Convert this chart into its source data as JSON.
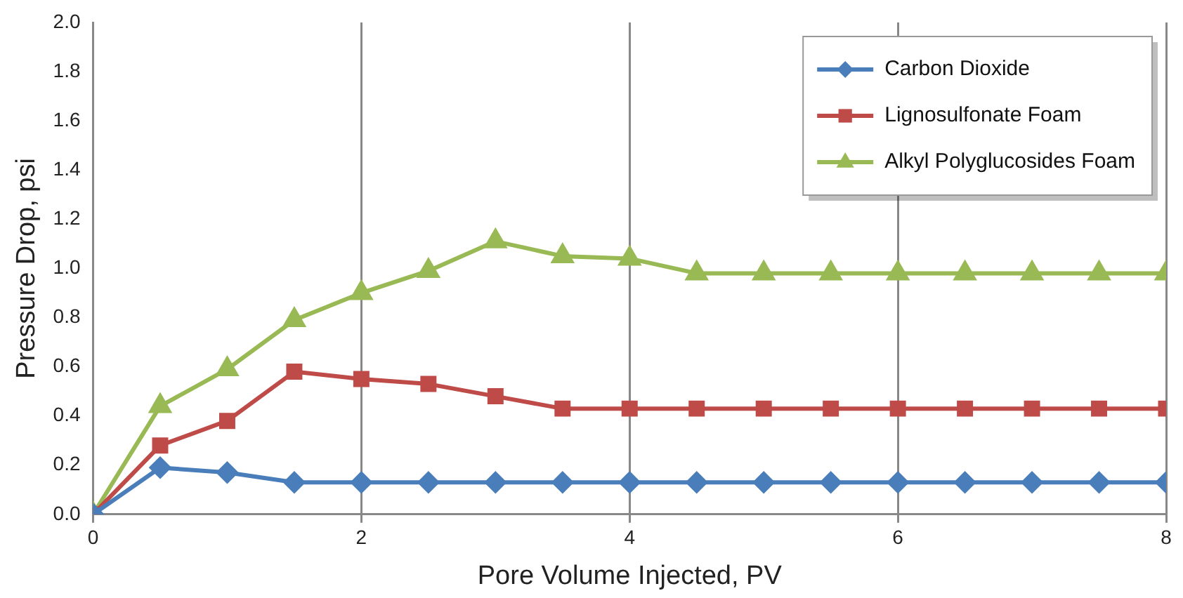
{
  "chart_data": {
    "type": "line",
    "xlabel": "Pore Volume Injected, PV",
    "ylabel": "Pressure Drop, psi",
    "x": [
      0,
      0.5,
      1,
      1.5,
      2,
      2.5,
      3,
      3.5,
      4,
      4.5,
      5,
      5.5,
      6,
      6.5,
      7,
      7.5,
      8
    ],
    "series": [
      {
        "name": "Carbon Dioxide",
        "color": "#4a7ebb",
        "marker": "diamond",
        "values": [
          0,
          0.19,
          0.17,
          0.13,
          0.13,
          0.13,
          0.13,
          0.13,
          0.13,
          0.13,
          0.13,
          0.13,
          0.13,
          0.13,
          0.13,
          0.13,
          0.13
        ]
      },
      {
        "name": "Lignosulfonate Foam",
        "color": "#be4b48",
        "marker": "square",
        "values": [
          0,
          0.28,
          0.38,
          0.58,
          0.55,
          0.53,
          0.48,
          0.43,
          0.43,
          0.43,
          0.43,
          0.43,
          0.43,
          0.43,
          0.43,
          0.43,
          0.43
        ]
      },
      {
        "name": "Alkyl Polyglucosides Foam",
        "color": "#98b954",
        "marker": "triangle",
        "values": [
          0,
          0.44,
          0.59,
          0.79,
          0.9,
          0.99,
          1.11,
          1.05,
          1.04,
          0.98,
          0.98,
          0.98,
          0.98,
          0.98,
          0.98,
          0.98,
          0.98
        ]
      }
    ],
    "xlim": [
      0,
      8
    ],
    "xticks": [
      0,
      2,
      4,
      6,
      8
    ],
    "ylim": [
      0,
      2
    ],
    "yticks": [
      {
        "value": 0,
        "label": "0.0"
      },
      0.2,
      0.4,
      0.6,
      0.8,
      {
        "value": 1,
        "label": "1.0"
      },
      1.2,
      1.4,
      1.6,
      1.8,
      {
        "value": 2,
        "label": "2.0"
      }
    ],
    "grid": "x",
    "legend": "top right",
    "line_style": "solid"
  }
}
